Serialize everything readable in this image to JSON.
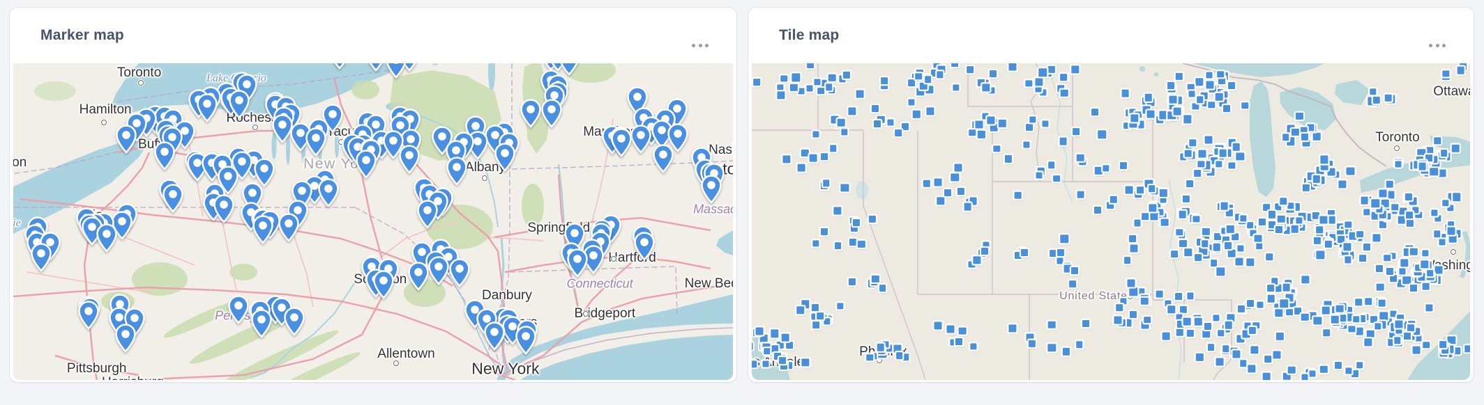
{
  "page": {
    "background": "#f2f4f8"
  },
  "cards": [
    {
      "title": "Marker map",
      "menu_icon": "ellipsis-horizontal"
    },
    {
      "title": "Tile map",
      "menu_icon": "ellipsis-horizontal"
    }
  ],
  "chart_data": [
    {
      "type": "scatter",
      "variant": "marker_map",
      "title": "Marker map",
      "region": "Northeastern United States (New York / Pennsylvania / New England, Lake Ontario to New York City)",
      "point_style": "map-pin",
      "point_color": "#4a90e2",
      "approx_point_count": 180,
      "clusters_xyrn": [
        [
          20,
          27,
          6,
          8,
          12
        ],
        [
          29,
          38,
          7,
          9,
          10
        ],
        [
          30,
          16,
          5,
          5,
          8
        ],
        [
          40,
          23,
          6,
          8,
          10
        ],
        [
          48,
          31,
          5,
          9,
          10
        ],
        [
          57,
          29,
          6,
          10,
          9
        ],
        [
          66,
          29,
          5,
          9,
          7
        ],
        [
          75,
          19,
          5,
          9,
          6
        ],
        [
          89,
          27,
          7,
          12,
          12
        ],
        [
          97,
          41,
          3,
          7,
          5
        ],
        [
          82,
          62,
          8,
          9,
          11
        ],
        [
          68,
          88,
          5,
          8,
          10
        ],
        [
          52,
          69,
          6,
          8,
          7
        ],
        [
          35,
          54,
          9,
          6,
          8
        ],
        [
          13,
          57,
          6,
          8,
          8
        ],
        [
          3,
          62,
          3,
          6,
          5
        ],
        [
          14,
          85,
          6,
          8,
          7
        ],
        [
          35,
          82,
          8,
          8,
          7
        ],
        [
          52,
          2,
          9,
          3,
          6
        ],
        [
          76,
          3,
          4,
          3,
          4
        ],
        [
          62,
          70,
          4,
          6,
          5
        ],
        [
          58,
          49,
          5,
          6,
          5
        ],
        [
          44,
          44,
          6,
          5,
          4
        ],
        [
          24,
          48,
          5,
          5,
          4
        ]
      ],
      "labels": [
        {
          "t": "Toronto",
          "x": 17.5,
          "y": 3.0,
          "cls": "city"
        },
        {
          "t": "Lake Ontario",
          "x": 31,
          "y": 4.8,
          "cls": "water"
        },
        {
          "t": "Hamilton",
          "x": 12.8,
          "y": 14.8,
          "cls": "city"
        },
        {
          "t": "Rochester",
          "x": 33.8,
          "y": 17.3,
          "cls": "city"
        },
        {
          "t": "Buffalo",
          "x": 20.2,
          "y": 25.8,
          "cls": "city"
        },
        {
          "t": "London",
          "x": -1.2,
          "y": 31.5,
          "cls": "city"
        },
        {
          "t": "Erie",
          "x": 10.8,
          "y": 48.2,
          "cls": "city"
        },
        {
          "t": "Lake Erie",
          "x": -2.0,
          "y": 50.6,
          "cls": "water"
        },
        {
          "t": "Syracuse",
          "x": 45.6,
          "y": 21.8,
          "cls": "city"
        },
        {
          "t": "New York",
          "x": 45.2,
          "y": 31.8,
          "cls": "region"
        },
        {
          "t": "Albany",
          "x": 65.6,
          "y": 33.0,
          "cls": "city"
        },
        {
          "t": "Manchester",
          "x": 84.0,
          "y": 21.8,
          "cls": "city"
        },
        {
          "t": "Nashua",
          "x": 99.8,
          "y": 27.5,
          "cls": "city"
        },
        {
          "t": "Boston",
          "x": 98.2,
          "y": 33.4,
          "cls": "city-lg"
        },
        {
          "t": "Massachusetts",
          "x": 100.3,
          "y": 46.2,
          "cls": "state"
        },
        {
          "t": "Springfield",
          "x": 75.8,
          "y": 52.0,
          "cls": "city"
        },
        {
          "t": "Hartford",
          "x": 86.0,
          "y": 61.6,
          "cls": "city"
        },
        {
          "t": "Connecticut",
          "x": 81.5,
          "y": 69.6,
          "cls": "state"
        },
        {
          "t": "New Bedford",
          "x": 98.6,
          "y": 69.6,
          "cls": "city"
        },
        {
          "t": "Danbury",
          "x": 68.6,
          "y": 73.3,
          "cls": "city"
        },
        {
          "t": "Bridgeport",
          "x": 82.2,
          "y": 79.2,
          "cls": "city"
        },
        {
          "t": "Yonkers",
          "x": 69.5,
          "y": 82.0,
          "cls": "city"
        },
        {
          "t": "New York",
          "x": 68.4,
          "y": 96.4,
          "cls": "city-lg"
        },
        {
          "t": "Allentown",
          "x": 54.6,
          "y": 91.9,
          "cls": "city"
        },
        {
          "t": "Scranton",
          "x": 51.0,
          "y": 68.3,
          "cls": "city"
        },
        {
          "t": "Pittsburgh",
          "x": 11.6,
          "y": 96.4,
          "cls": "city"
        },
        {
          "t": "Pennsylvania",
          "x": 33.2,
          "y": 79.8,
          "cls": "state"
        },
        {
          "t": "Harrisburg",
          "x": 16.6,
          "y": 100.8,
          "cls": "city"
        }
      ],
      "city_dots": [
        [
          17.7,
          6.2
        ],
        [
          12.55,
          18.6
        ],
        [
          20.1,
          28.9
        ],
        [
          33.6,
          20.3
        ],
        [
          45.5,
          24.8
        ],
        [
          10.7,
          51.6
        ],
        [
          65.5,
          36.2
        ],
        [
          83.4,
          61.7
        ],
        [
          79.6,
          79.2
        ],
        [
          53.2,
          94.8
        ]
      ]
    },
    {
      "type": "scatter",
      "variant": "tile_map",
      "title": "Tile map",
      "region": "Continental United States (Pacific coast to Great Lakes / Atlantic coast)",
      "point_style": "square-tile",
      "point_color": "#4a90d9",
      "approx_point_count": 735,
      "clusters_xyrn": [
        [
          8,
          6,
          10,
          7,
          18
        ],
        [
          25,
          5,
          12,
          6,
          20
        ],
        [
          40,
          6,
          10,
          7,
          16
        ],
        [
          18,
          18,
          12,
          8,
          14
        ],
        [
          33,
          20,
          10,
          8,
          12
        ],
        [
          10,
          32,
          9,
          10,
          10
        ],
        [
          28,
          38,
          10,
          12,
          12
        ],
        [
          15,
          55,
          10,
          10,
          10
        ],
        [
          32,
          60,
          8,
          10,
          8
        ],
        [
          45,
          30,
          8,
          14,
          14
        ],
        [
          45,
          60,
          9,
          12,
          12
        ],
        [
          3.5,
          91,
          4.5,
          7,
          26
        ],
        [
          9,
          80,
          5,
          6,
          10
        ],
        [
          19,
          92,
          4,
          5,
          10
        ],
        [
          30,
          85,
          6,
          6,
          6
        ],
        [
          42,
          85,
          8,
          8,
          8
        ],
        [
          17,
          70,
          4,
          4,
          5
        ],
        [
          55,
          15,
          8,
          10,
          25
        ],
        [
          55,
          45,
          8,
          14,
          30
        ],
        [
          55,
          78,
          8,
          12,
          25
        ],
        [
          63,
          10,
          6,
          8,
          30
        ],
        [
          64,
          30,
          5,
          8,
          28
        ],
        [
          66,
          55,
          8,
          12,
          45
        ],
        [
          66,
          85,
          8,
          10,
          30
        ],
        [
          74,
          50,
          5,
          8,
          25
        ],
        [
          74,
          75,
          6,
          10,
          25
        ],
        [
          76,
          22,
          3,
          7,
          12
        ],
        [
          80,
          35,
          4,
          6,
          18
        ],
        [
          82,
          55,
          6,
          10,
          40
        ],
        [
          82,
          80,
          7,
          10,
          30
        ],
        [
          90,
          45,
          5,
          8,
          30
        ],
        [
          92,
          65,
          5,
          8,
          35
        ],
        [
          90,
          85,
          6,
          8,
          28
        ],
        [
          96,
          30,
          3,
          6,
          15
        ],
        [
          93,
          32,
          4,
          4,
          12
        ],
        [
          97,
          50,
          2.5,
          10,
          15
        ],
        [
          97,
          90,
          3,
          5,
          10
        ],
        [
          97,
          3,
          3,
          3,
          4
        ],
        [
          87,
          10,
          4,
          5,
          6
        ],
        [
          78,
          97,
          10,
          3,
          12
        ]
      ],
      "labels": [
        {
          "t": "Ottawa",
          "x": 97.8,
          "y": 9.0,
          "cls": "city"
        },
        {
          "t": "Toronto",
          "x": 89.9,
          "y": 23.5,
          "cls": "city"
        },
        {
          "t": "Washington",
          "x": 98.2,
          "y": 64.0,
          "cls": "city"
        },
        {
          "t": "United States",
          "x": 48.0,
          "y": 73.6,
          "cls": "country"
        },
        {
          "t": "Phoenix",
          "x": 18.3,
          "y": 91.3,
          "cls": "city"
        },
        {
          "t": "Los Angeles",
          "x": 3.2,
          "y": 94.6,
          "cls": "city"
        }
      ],
      "city_dots": [
        [
          89.85,
          26.8
        ],
        [
          17.75,
          93.8
        ],
        [
          97.7,
          59.5
        ]
      ]
    }
  ]
}
